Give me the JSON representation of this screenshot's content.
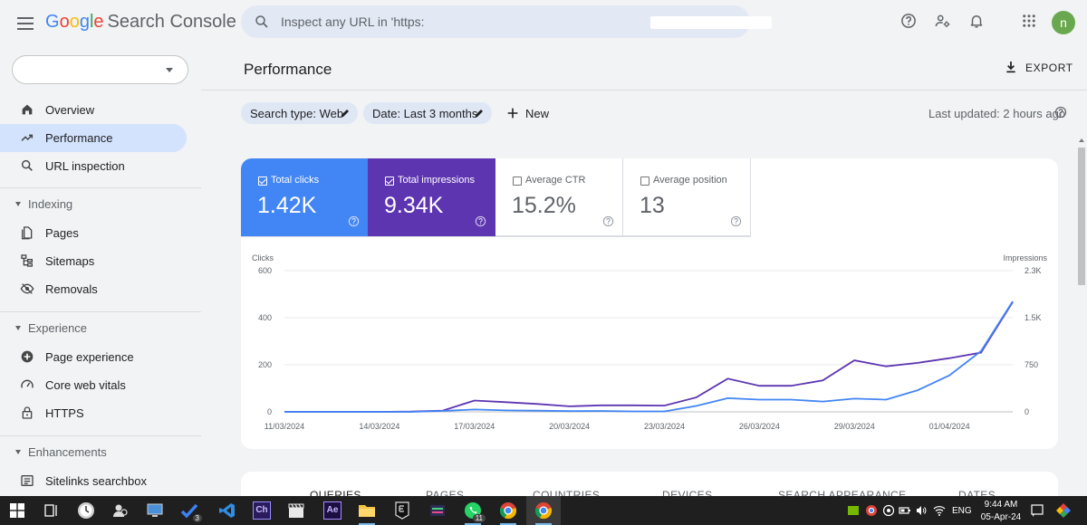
{
  "app": {
    "logo_letters": [
      "G",
      "o",
      "o",
      "g",
      "l",
      "e"
    ],
    "logo_product": "Search Console"
  },
  "search": {
    "placeholder": "Inspect any URL in 'https:"
  },
  "user": {
    "avatar_initial": "n"
  },
  "sidebar": {
    "items_top": [
      {
        "label": "Overview",
        "icon": "home-icon",
        "active": false
      },
      {
        "label": "Performance",
        "icon": "trending-up-icon",
        "active": true
      },
      {
        "label": "URL inspection",
        "icon": "search-icon",
        "active": false
      }
    ],
    "sections": [
      {
        "label": "Indexing",
        "items": [
          {
            "label": "Pages",
            "icon": "pages-icon"
          },
          {
            "label": "Sitemaps",
            "icon": "sitemap-icon"
          },
          {
            "label": "Removals",
            "icon": "removals-icon"
          }
        ]
      },
      {
        "label": "Experience",
        "items": [
          {
            "label": "Page experience",
            "icon": "page-experience-icon"
          },
          {
            "label": "Core web vitals",
            "icon": "speedometer-icon"
          },
          {
            "label": "HTTPS",
            "icon": "lock-icon"
          }
        ]
      },
      {
        "label": "Enhancements",
        "items": [
          {
            "label": "Sitelinks searchbox",
            "icon": "sitelinks-icon"
          }
        ]
      }
    ]
  },
  "main": {
    "title": "Performance",
    "export_label": "EXPORT",
    "filters": [
      {
        "label": "Search type: Web"
      },
      {
        "label": "Date: Last 3 months"
      }
    ],
    "new_label": "New",
    "last_updated": "Last updated: 2 hours ago"
  },
  "metrics": [
    {
      "label": "Total clicks",
      "value": "1.42K",
      "checked": true,
      "color": "#4285f4"
    },
    {
      "label": "Total impressions",
      "value": "9.34K",
      "checked": true,
      "color": "#5e35b1"
    },
    {
      "label": "Average CTR",
      "value": "15.2%",
      "checked": false
    },
    {
      "label": "Average position",
      "value": "13",
      "checked": false
    }
  ],
  "chart_data": {
    "type": "line",
    "left_axis": {
      "title": "Clicks",
      "ticks": [
        "600",
        "400",
        "200",
        "0"
      ],
      "range": [
        0,
        600
      ]
    },
    "right_axis": {
      "title": "Impressions",
      "ticks": [
        "2.3K",
        "1.5K",
        "750",
        "0"
      ],
      "range": [
        0,
        2250
      ]
    },
    "x_tick_labels": [
      "11/03/2024",
      "14/03/2024",
      "17/03/2024",
      "20/03/2024",
      "23/03/2024",
      "26/03/2024",
      "29/03/2024",
      "01/04/2024"
    ],
    "x": [
      "11/03/2024",
      "12/03/2024",
      "13/03/2024",
      "14/03/2024",
      "15/03/2024",
      "16/03/2024",
      "17/03/2024",
      "18/03/2024",
      "19/03/2024",
      "20/03/2024",
      "21/03/2024",
      "22/03/2024",
      "23/03/2024",
      "24/03/2024",
      "25/03/2024",
      "26/03/2024",
      "27/03/2024",
      "28/03/2024",
      "29/03/2024",
      "30/03/2024",
      "31/03/2024",
      "01/04/2024",
      "02/04/2024",
      "03/04/2024"
    ],
    "series": [
      {
        "axis": "left",
        "color": "#4285f4",
        "values": [
          0,
          0,
          0,
          0,
          0,
          4,
          10,
          6,
          5,
          3,
          4,
          2,
          2,
          25,
          58,
          52,
          52,
          44,
          56,
          52,
          92,
          155,
          258,
          470
        ]
      },
      {
        "axis": "right",
        "color": "#5e35b1",
        "values": [
          0,
          0,
          0,
          0,
          4,
          20,
          180,
          155,
          125,
          88,
          104,
          104,
          100,
          230,
          530,
          415,
          415,
          500,
          820,
          725,
          780,
          855,
          945,
          1750
        ]
      }
    ],
    "grid": true
  },
  "tabs": [
    {
      "label": "QUERIES",
      "active": true
    },
    {
      "label": "PAGES",
      "active": false
    },
    {
      "label": "COUNTRIES",
      "active": false
    },
    {
      "label": "DEVICES",
      "active": false
    },
    {
      "label": "SEARCH APPEARANCE",
      "active": false
    },
    {
      "label": "DATES",
      "active": false
    }
  ],
  "taskbar": {
    "apps": [
      {
        "name": "start-button",
        "label": ""
      },
      {
        "name": "task-view",
        "label": ""
      },
      {
        "name": "app-clock",
        "label": ""
      },
      {
        "name": "app-people",
        "label": ""
      },
      {
        "name": "app-monitor",
        "label": ""
      },
      {
        "name": "app-tasks",
        "label": "",
        "badge": "3"
      },
      {
        "name": "app-vscode",
        "label": ""
      },
      {
        "name": "app-ch",
        "label": "Ch"
      },
      {
        "name": "app-clapper",
        "label": ""
      },
      {
        "name": "app-ae",
        "label": "Ae"
      },
      {
        "name": "app-explorer",
        "label": ""
      },
      {
        "name": "app-epic",
        "label": ""
      },
      {
        "name": "app-rss",
        "label": ""
      },
      {
        "name": "app-whatsapp",
        "label": "",
        "badge": "11"
      },
      {
        "name": "app-chrome-1",
        "label": ""
      },
      {
        "name": "app-chrome-2",
        "label": ""
      }
    ],
    "language": "ENG",
    "time": "9:44 AM",
    "date": "05-Apr-24"
  }
}
